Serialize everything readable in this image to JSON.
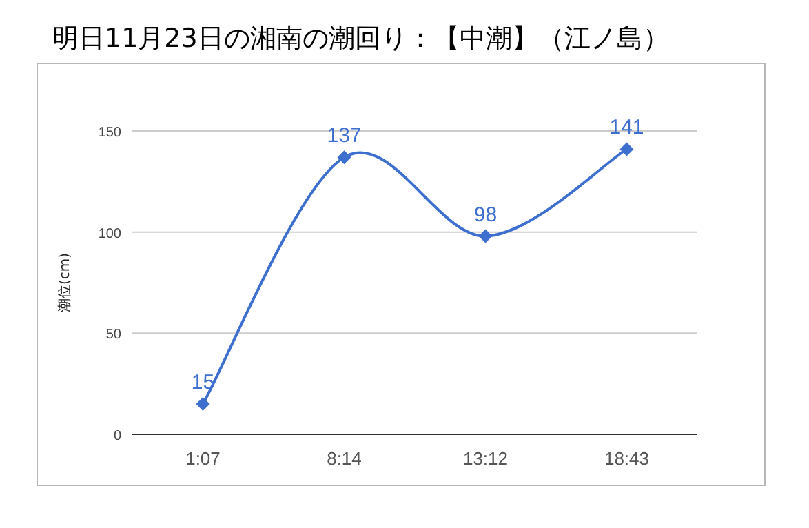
{
  "chart_data": {
    "type": "line",
    "title": "明日11月23日の湘南の潮回り：【中潮】（江ノ島）",
    "ylabel": "潮位(cm)",
    "categories": [
      "1:07",
      "8:14",
      "13:12",
      "18:43"
    ],
    "values": [
      15,
      137,
      98,
      141
    ],
    "color": "#3d6fcf",
    "ylim": [
      0,
      150
    ],
    "yticks": [
      0,
      50,
      100,
      150
    ],
    "grid": "y",
    "marker": "diamond",
    "data_labels": true
  }
}
